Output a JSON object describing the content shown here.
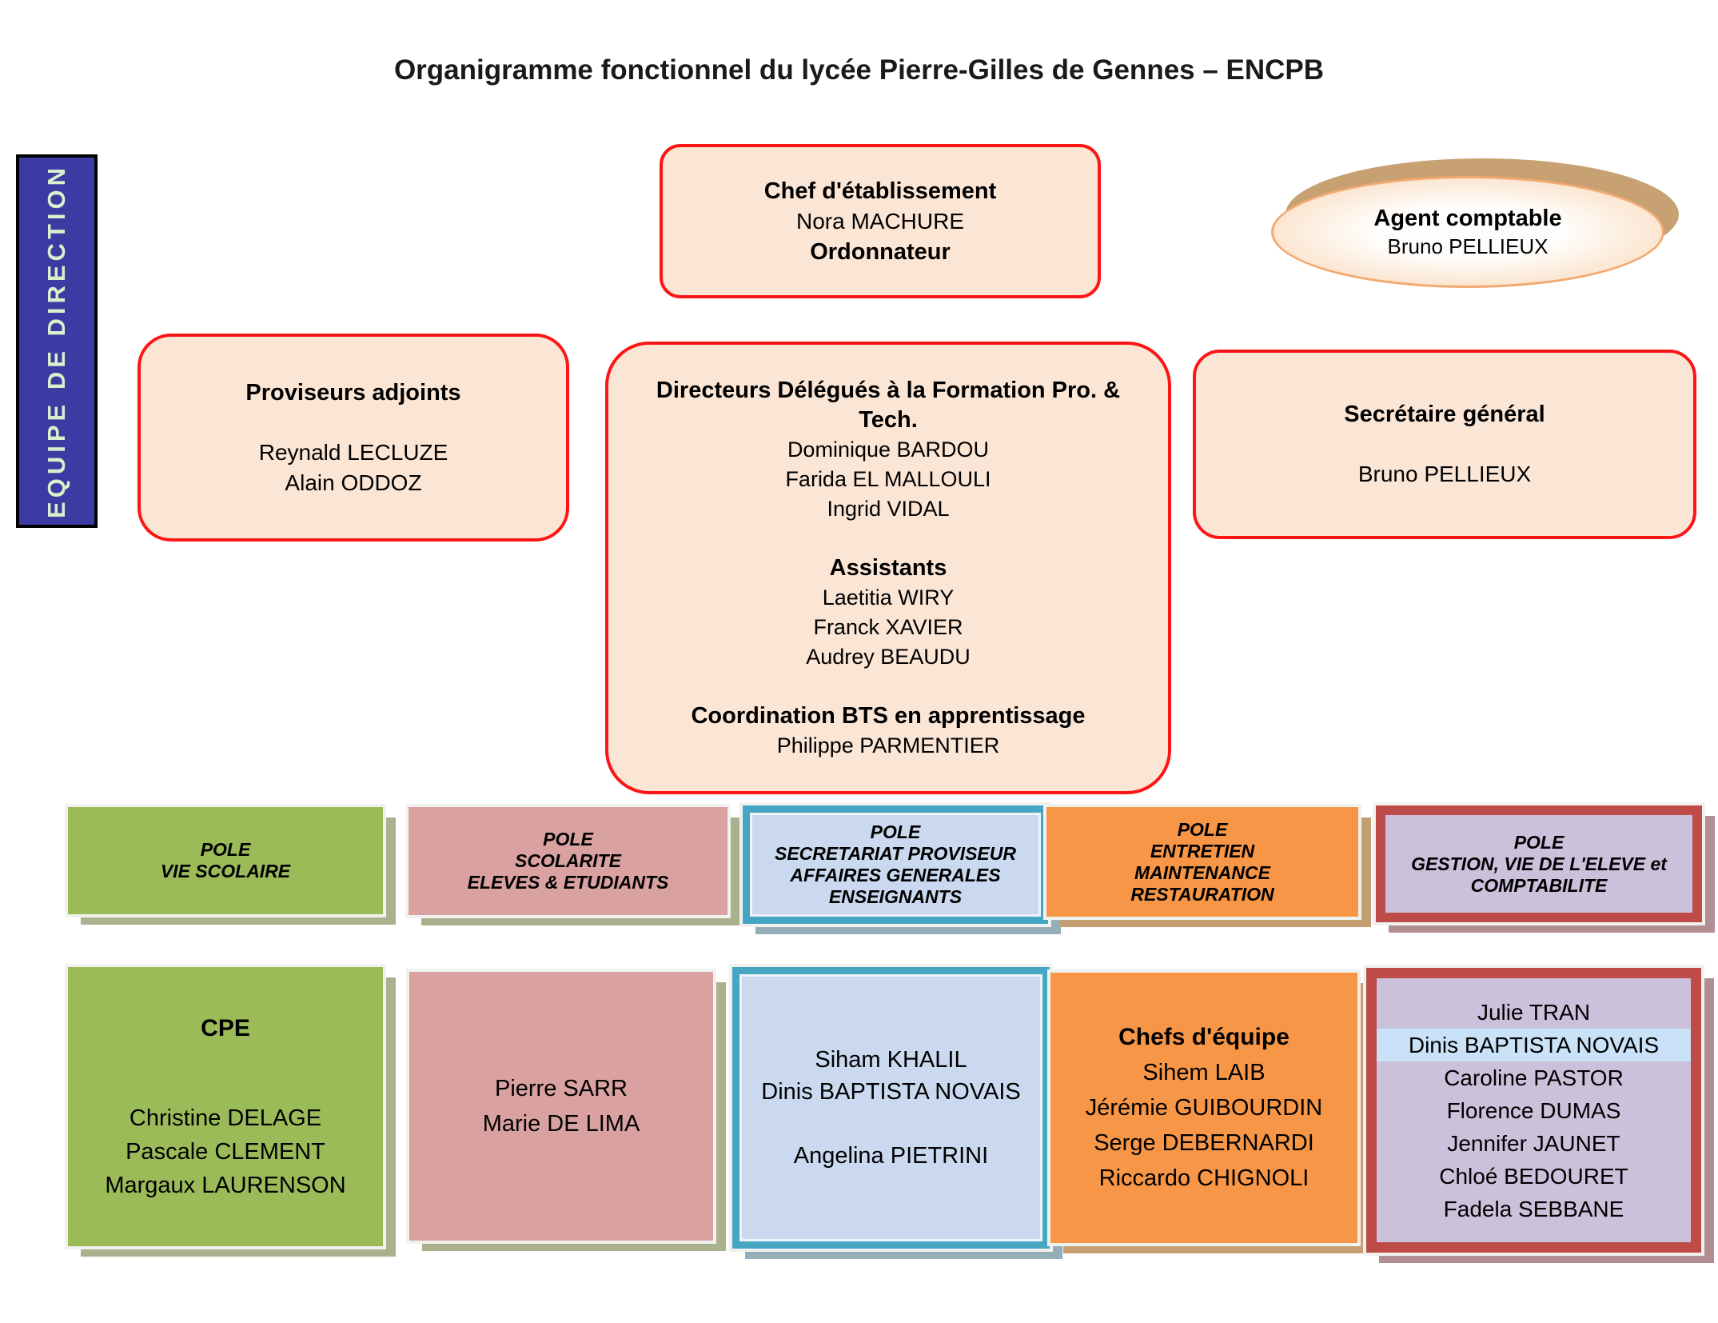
{
  "title": "Organigramme fonctionnel du lycée Pierre-Gilles de Gennes – ENCPB",
  "direction_banner": "EQUIPE DE DIRECTION",
  "chef": {
    "title": "Chef d'établissement",
    "name": "Nora MACHURE",
    "role": "Ordonnateur"
  },
  "agent_comptable": {
    "title": "Agent comptable",
    "name": "Bruno PELLIEUX"
  },
  "proviseurs": {
    "title": "Proviseurs adjoints",
    "names": [
      "Reynald LECLUZE",
      "Alain ODDOZ"
    ]
  },
  "directeurs": {
    "title": "Directeurs Délégués à la Formation Pro. & Tech.",
    "names": [
      "Dominique BARDOU",
      "Farida EL MALLOULI",
      "Ingrid VIDAL"
    ],
    "assistants_title": "Assistants",
    "assistants": [
      "Laetitia WIRY",
      "Franck XAVIER",
      "Audrey BEAUDU"
    ],
    "coordination_title": "Coordination BTS en apprentissage",
    "coordination_name": "Philippe PARMENTIER"
  },
  "secretaire_general": {
    "title": "Secrétaire général",
    "name": "Bruno PELLIEUX"
  },
  "poles": {
    "vie_scolaire": {
      "header_lines": [
        "POLE",
        "VIE SCOLAIRE"
      ],
      "box_title": "CPE",
      "names": [
        "Christine DELAGE",
        "Pascale CLEMENT",
        "Margaux LAURENSON"
      ]
    },
    "scolarite": {
      "header_lines": [
        "POLE",
        "SCOLARITE",
        "ELEVES & ETUDIANTS"
      ],
      "names": [
        "Pierre SARR",
        "Marie DE LIMA"
      ]
    },
    "secretariat": {
      "header_lines": [
        "POLE",
        "SECRETARIAT PROVISEUR",
        "AFFAIRES GENERALES",
        "ENSEIGNANTS"
      ],
      "names_top": [
        "Siham KHALIL",
        "Dinis BAPTISTA NOVAIS"
      ],
      "name_bottom": "Angelina PIETRINI"
    },
    "entretien": {
      "header_lines": [
        "POLE",
        "ENTRETIEN",
        "MAINTENANCE",
        "RESTAURATION"
      ],
      "box_title": "Chefs d'équipe",
      "names": [
        "Sihem LAIB",
        "Jérémie GUIBOURDIN",
        "Serge DEBERNARDI",
        "Riccardo CHIGNOLI"
      ]
    },
    "gestion": {
      "header_lines": [
        "POLE",
        "GESTION, VIE DE L'ELEVE et",
        "COMPTABILITE"
      ],
      "name_first": "Julie TRAN",
      "name_highlighted": "Dinis BAPTISTA NOVAIS",
      "names_rest": [
        "Caroline PASTOR",
        "Florence DUMAS",
        "Jennifer JAUNET",
        "Chloé BEDOURET",
        "Fadela SEBBANE"
      ]
    }
  },
  "colors": {
    "peach_box_fill": "#fbe5d5",
    "red_border": "#fe1515",
    "banner_blue": "#3b3ba3",
    "banner_text_green": "#d8f0cc",
    "pole_green": "#9bbb59",
    "pole_pink": "#d9a2a1",
    "pole_teal_border": "#44a6c2",
    "pole_blue_fill": "#cad9ef",
    "pole_orange": "#f79646",
    "pole_purple_fill": "#cbc1db",
    "pole_darkred_border": "#be4b48",
    "highlight_blue": "#c9e2f8",
    "ellipse_border": "#f2a970",
    "ellipse_shadow": "#c8a173"
  }
}
